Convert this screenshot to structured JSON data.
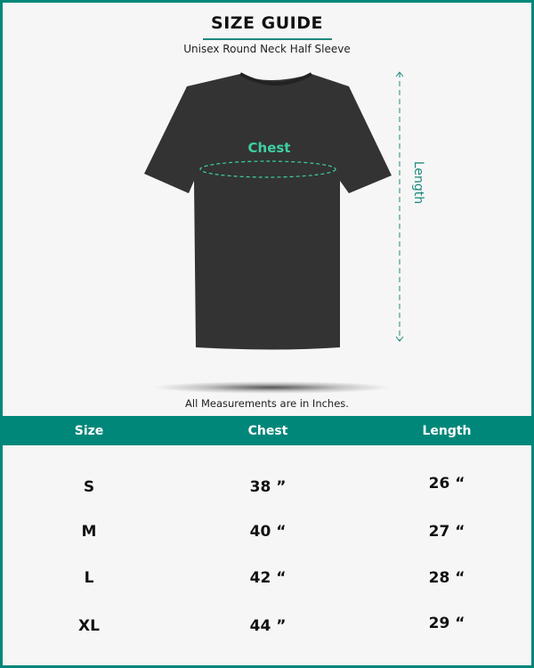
{
  "header": {
    "title": "SIZE GUIDE",
    "subtitle": "Unisex  Round Neck Half Sleeve"
  },
  "diagram": {
    "chest_label": "Chest",
    "length_label": "Length",
    "note": "All Measurements are in Inches."
  },
  "colors": {
    "accent": "#00877a",
    "chest": "#3ed0a3",
    "shirt": "#333333"
  },
  "table": {
    "headers": [
      "Size",
      "Chest",
      "Length"
    ],
    "rows": [
      {
        "size": "S",
        "chest": "38 ”",
        "length": "26 “"
      },
      {
        "size": "M",
        "chest": "40 “",
        "length": "27 “"
      },
      {
        "size": "L",
        "chest": "42 “",
        "length": "28 “"
      },
      {
        "size": "XL",
        "chest": "44 ”",
        "length": "29 “"
      }
    ]
  }
}
